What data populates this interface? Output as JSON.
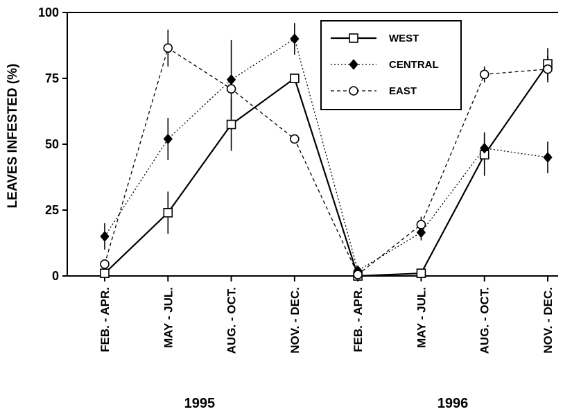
{
  "chart_data": {
    "type": "line",
    "ylabel": "LEAVES    INFESTED    (%)",
    "ylim": [
      0,
      100
    ],
    "yticks": [
      0,
      25,
      50,
      75,
      100
    ],
    "categories": [
      "FEB. - APR.",
      "MAY - JUL.",
      "AUG. - OCT.",
      "NOV. - DEC.",
      "FEB. - APR.",
      "MAY - JUL.",
      "AUG. - OCT.",
      "NOV. - DEC."
    ],
    "groups": [
      {
        "label": "1995",
        "from": 0,
        "to": 3
      },
      {
        "label": "1996",
        "from": 4,
        "to": 7
      }
    ],
    "legend_position": "top-right",
    "grid": false,
    "series": [
      {
        "name": "WEST",
        "marker": "open-square",
        "line": "solid",
        "values": [
          1,
          24,
          57.5,
          75,
          0,
          1,
          46,
          80.5
        ],
        "errors": [
          0,
          8,
          10,
          0,
          0,
          0,
          8,
          6
        ]
      },
      {
        "name": "CENTRAL",
        "marker": "filled-diamond",
        "line": "dotted",
        "values": [
          15,
          52,
          74.5,
          90,
          2,
          16.5,
          48.5,
          45
        ],
        "errors": [
          5,
          8,
          15,
          6,
          0,
          3,
          6,
          6
        ]
      },
      {
        "name": "EAST",
        "marker": "open-circle",
        "line": "dashed",
        "values": [
          4.5,
          86.5,
          71,
          52,
          0.5,
          19.5,
          76.5,
          78.5
        ],
        "errors": [
          0,
          7,
          0,
          0,
          0,
          3,
          3,
          5
        ]
      }
    ]
  }
}
